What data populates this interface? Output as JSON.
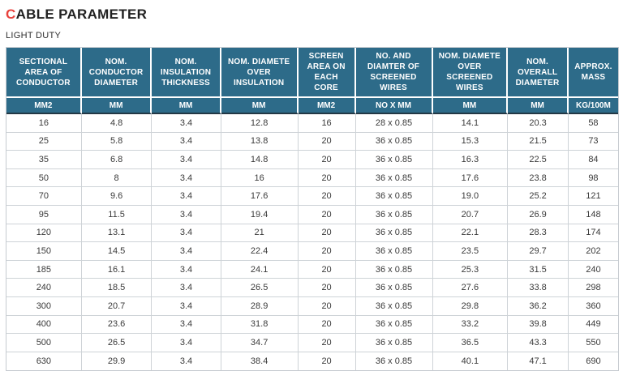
{
  "header": {
    "title_first_letter": "C",
    "title_rest": "ABLE PARAMETER",
    "subtitle": "LIGHT DUTY"
  },
  "colors": {
    "accent_red": "#e8413c",
    "header_teal": "#2d6b89",
    "header_divider_dark": "#233845",
    "grid_gray": "#ced3d7",
    "text_dark": "#212121"
  },
  "table": {
    "columns": [
      {
        "label": "SECTIONAL AREA OF CONDUCTOR",
        "unit": "MM2"
      },
      {
        "label": "NOM. CONDUCTOR DIAMETER",
        "unit": "MM"
      },
      {
        "label": "NOM. INSULATION THICKNESS",
        "unit": "MM"
      },
      {
        "label": "NOM. DIAMETE OVER INSULATION",
        "unit": "MM"
      },
      {
        "label": "SCREEN AREA ON EACH CORE",
        "unit": "MM2"
      },
      {
        "label": "NO. AND DIAMTER OF SCREENED WIRES",
        "unit": "NO X MM"
      },
      {
        "label": "NOM. DIAMETE OVER SCREENED WIRES",
        "unit": "MM"
      },
      {
        "label": "NOM. OVERALL DIAMETER",
        "unit": "MM"
      },
      {
        "label": "APPROX. MASS",
        "unit": "KG/100M"
      }
    ],
    "rows": [
      [
        "16",
        "4.8",
        "3.4",
        "12.8",
        "16",
        "28 x 0.85",
        "14.1",
        "20.3",
        "58"
      ],
      [
        "25",
        "5.8",
        "3.4",
        "13.8",
        "20",
        "36 x 0.85",
        "15.3",
        "21.5",
        "73"
      ],
      [
        "35",
        "6.8",
        "3.4",
        "14.8",
        "20",
        "36 x 0.85",
        "16.3",
        "22.5",
        "84"
      ],
      [
        "50",
        "8",
        "3.4",
        "16",
        "20",
        "36 x 0.85",
        "17.6",
        "23.8",
        "98"
      ],
      [
        "70",
        "9.6",
        "3.4",
        "17.6",
        "20",
        "36 x 0.85",
        "19.0",
        "25.2",
        "121"
      ],
      [
        "95",
        "11.5",
        "3.4",
        "19.4",
        "20",
        "36 x 0.85",
        "20.7",
        "26.9",
        "148"
      ],
      [
        "120",
        "13.1",
        "3.4",
        "21",
        "20",
        "36 x 0.85",
        "22.1",
        "28.3",
        "174"
      ],
      [
        "150",
        "14.5",
        "3.4",
        "22.4",
        "20",
        "36 x 0.85",
        "23.5",
        "29.7",
        "202"
      ],
      [
        "185",
        "16.1",
        "3.4",
        "24.1",
        "20",
        "36 x 0.85",
        "25.3",
        "31.5",
        "240"
      ],
      [
        "240",
        "18.5",
        "3.4",
        "26.5",
        "20",
        "36 x 0.85",
        "27.6",
        "33.8",
        "298"
      ],
      [
        "300",
        "20.7",
        "3.4",
        "28.9",
        "20",
        "36 x 0.85",
        "29.8",
        "36.2",
        "360"
      ],
      [
        "400",
        "23.6",
        "3.4",
        "31.8",
        "20",
        "36 x 0.85",
        "33.2",
        "39.8",
        "449"
      ],
      [
        "500",
        "26.5",
        "3.4",
        "34.7",
        "20",
        "36 x 0.85",
        "36.5",
        "43.3",
        "550"
      ],
      [
        "630",
        "29.9",
        "3.4",
        "38.4",
        "20",
        "36 x 0.85",
        "40.1",
        "47.1",
        "690"
      ]
    ]
  }
}
